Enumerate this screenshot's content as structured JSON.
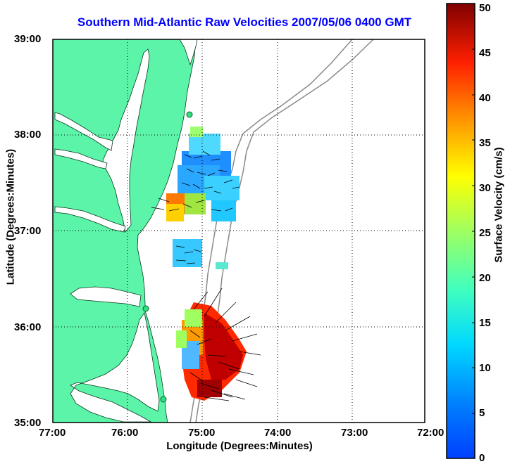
{
  "title": "Southern Mid-Atlantic Raw Velocities 2007/05/06 0400 GMT",
  "map": {
    "xlabel": "Longitude (Degrees:Minutes)",
    "ylabel": "Latitude (Degrees:Minutes)",
    "lon_range": [
      -77,
      -72
    ],
    "lat_range": [
      35,
      39
    ],
    "x_ticks": [
      "77:00",
      "76:00",
      "75:00",
      "74:00",
      "73:00",
      "72:00"
    ],
    "y_ticks": [
      "39:00",
      "38:00",
      "37:00",
      "36:00",
      "35:00"
    ],
    "grid": "dotted",
    "land_color": "#5cf4a8",
    "sites": [
      {
        "lon": -75.16,
        "lat": 38.23
      },
      {
        "lon": -75.7,
        "lat": 36.18
      },
      {
        "lon": -75.5,
        "lat": 35.26
      }
    ]
  },
  "colorbar": {
    "label": "Surface Velocity (cm/s)",
    "ticks": [
      "0",
      "5",
      "10",
      "15",
      "20",
      "25",
      "30",
      "35",
      "40",
      "45",
      "50"
    ],
    "range": [
      0,
      50
    ],
    "colormap": "jet"
  }
}
